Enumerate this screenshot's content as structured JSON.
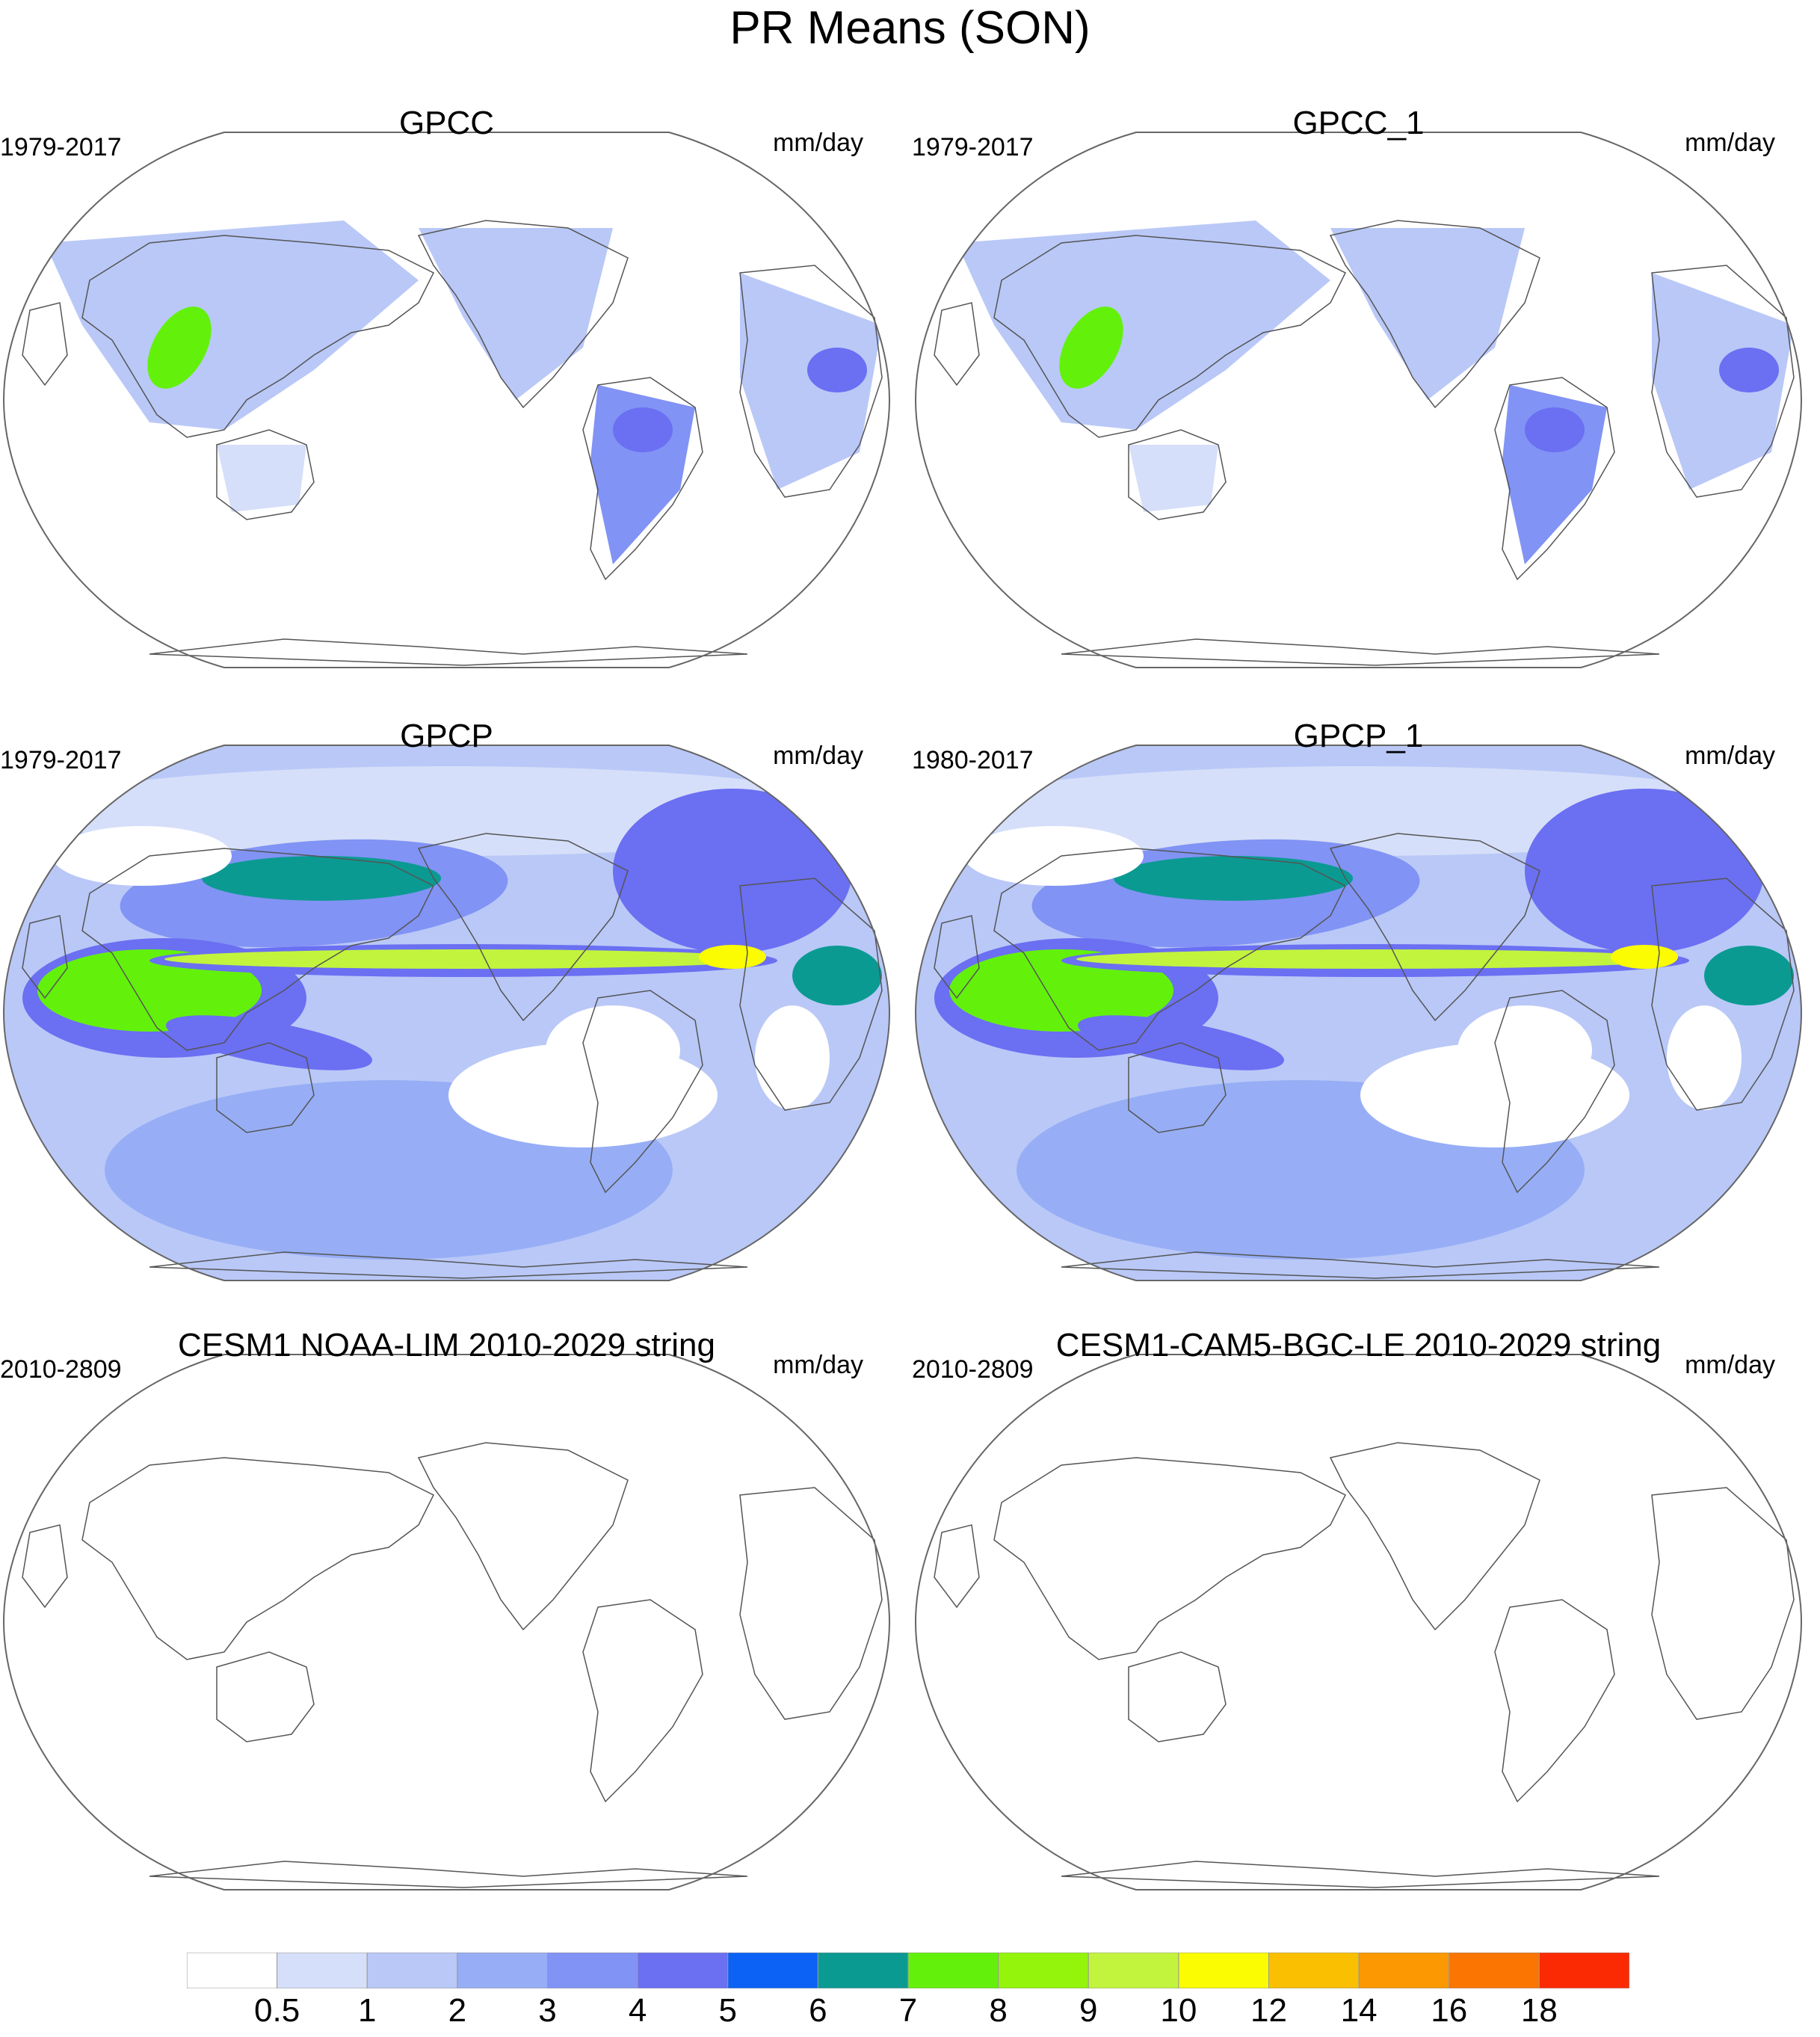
{
  "title": "PR Means (SON)",
  "panels": [
    {
      "title": "GPCC",
      "period": "1979-2017",
      "units": "mm/day",
      "field": "land"
    },
    {
      "title": "GPCC_1",
      "period": "1979-2017",
      "units": "mm/day",
      "field": "land"
    },
    {
      "title": "GPCP",
      "period": "1979-2017",
      "units": "mm/day",
      "field": "global"
    },
    {
      "title": "GPCP_1",
      "period": "1980-2017",
      "units": "mm/day",
      "field": "global"
    },
    {
      "title": "CESM1 NOAA-LIM 2010-2029 string",
      "period": "2010-2809",
      "units": "mm/day",
      "field": "empty"
    },
    {
      "title": "CESM1-CAM5-BGC-LE 2010-2029 string",
      "period": "2010-2809",
      "units": "mm/day",
      "field": "empty"
    }
  ],
  "colorbar": {
    "labels": [
      "0.5",
      "1",
      "2",
      "3",
      "4",
      "5",
      "6",
      "7",
      "8",
      "9",
      "10",
      "12",
      "14",
      "16",
      "18"
    ],
    "colors": [
      "#ffffff",
      "#d6dff9",
      "#b9c8f7",
      "#97aef6",
      "#8193f4",
      "#6b6ff2",
      "#0b62f5",
      "#0b9a92",
      "#63f10c",
      "#94f40b",
      "#c2f43d",
      "#fbfb02",
      "#fbbf02",
      "#fb9802",
      "#fb7503",
      "#fb2a03"
    ]
  }
}
